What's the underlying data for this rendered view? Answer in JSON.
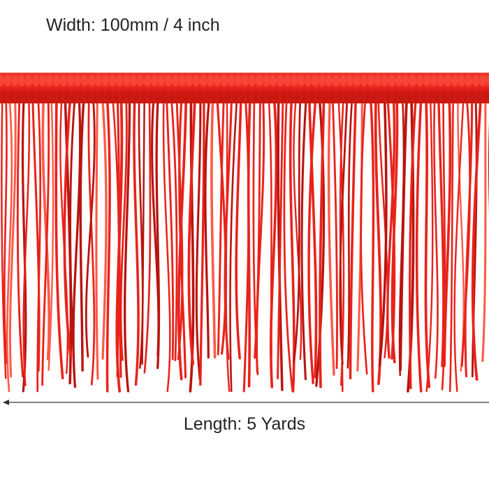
{
  "labels": {
    "width": "Width: 100mm / 4 inch",
    "length": "Length: 5 Yards"
  },
  "colors": {
    "fringe": "#e8231b",
    "fringe_dark": "#b8140f",
    "fringe_light": "#ff5a48",
    "text": "#222222",
    "arrow": "#333333"
  }
}
